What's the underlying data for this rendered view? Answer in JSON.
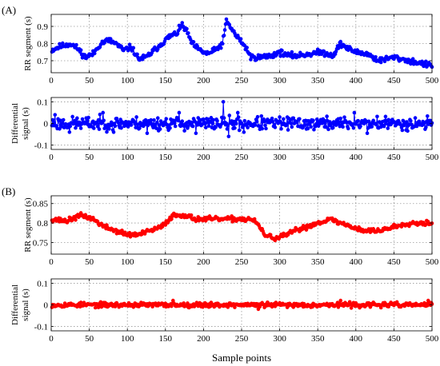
{
  "figure": {
    "xlabel_bottom": "Sample points",
    "colors": {
      "A": "#0000ff",
      "B": "#ff0000",
      "grid": "#9a9a9a"
    }
  },
  "chart_data": [
    {
      "id": "A1",
      "panel_label": "(A)",
      "type": "line",
      "ylabel_lines": [
        "RR segment (s)"
      ],
      "xlim": [
        0,
        500
      ],
      "ylim": [
        0.63,
        0.97
      ],
      "xticks": [
        0,
        50,
        100,
        150,
        200,
        250,
        300,
        350,
        400,
        450,
        500
      ],
      "yticks": [
        0.7,
        0.8,
        0.9
      ],
      "ytick_labels": [
        "0.7",
        "0.8",
        "0.9"
      ],
      "grid": true,
      "series": [
        {
          "color": "#0000ff",
          "marker": "circle",
          "knots": [
            [
              0,
              0.76
            ],
            [
              10,
              0.78
            ],
            [
              25,
              0.8
            ],
            [
              35,
              0.77
            ],
            [
              45,
              0.72
            ],
            [
              55,
              0.74
            ],
            [
              65,
              0.8
            ],
            [
              75,
              0.82
            ],
            [
              85,
              0.8
            ],
            [
              95,
              0.76
            ],
            [
              105,
              0.78
            ],
            [
              115,
              0.71
            ],
            [
              125,
              0.72
            ],
            [
              135,
              0.76
            ],
            [
              145,
              0.8
            ],
            [
              155,
              0.84
            ],
            [
              165,
              0.86
            ],
            [
              172,
              0.91
            ],
            [
              178,
              0.87
            ],
            [
              185,
              0.8
            ],
            [
              195,
              0.76
            ],
            [
              205,
              0.74
            ],
            [
              215,
              0.76
            ],
            [
              225,
              0.8
            ],
            [
              230,
              0.93
            ],
            [
              235,
              0.9
            ],
            [
              242,
              0.85
            ],
            [
              250,
              0.81
            ],
            [
              258,
              0.76
            ],
            [
              262,
              0.72
            ],
            [
              275,
              0.72
            ],
            [
              290,
              0.73
            ],
            [
              300,
              0.75
            ],
            [
              310,
              0.73
            ],
            [
              325,
              0.73
            ],
            [
              340,
              0.74
            ],
            [
              355,
              0.75
            ],
            [
              370,
              0.73
            ],
            [
              380,
              0.8
            ],
            [
              390,
              0.77
            ],
            [
              400,
              0.75
            ],
            [
              415,
              0.74
            ],
            [
              430,
              0.7
            ],
            [
              450,
              0.72
            ],
            [
              470,
              0.7
            ],
            [
              490,
              0.68
            ],
            [
              500,
              0.67
            ]
          ],
          "noise": 0.025,
          "seed": 11
        }
      ]
    },
    {
      "id": "A2",
      "type": "line",
      "ylabel_lines": [
        "Differential",
        "signal (s)"
      ],
      "xlim": [
        0,
        500
      ],
      "ylim": [
        -0.12,
        0.12
      ],
      "xticks": [
        0,
        50,
        100,
        150,
        200,
        250,
        300,
        350,
        400,
        450,
        500
      ],
      "yticks": [
        -0.1,
        0,
        0.1
      ],
      "ytick_labels": [
        "-0.1",
        "0",
        "0.1"
      ],
      "grid": true,
      "series": [
        {
          "color": "#0000ff",
          "marker": "circle",
          "knots": [
            [
              0,
              0
            ],
            [
              500,
              0
            ]
          ],
          "noise": 0.045,
          "seed": 23,
          "spikes": [
            [
              5,
              0.04
            ],
            [
              24,
              -0.04
            ],
            [
              68,
              0.05
            ],
            [
              82,
              -0.04
            ],
            [
              126,
              -0.045
            ],
            [
              168,
              0.05
            ],
            [
              190,
              -0.045
            ],
            [
              226,
              0.1
            ],
            [
              233,
              -0.06
            ],
            [
              245,
              0.05
            ],
            [
              253,
              -0.04
            ],
            [
              398,
              0.05
            ],
            [
              415,
              -0.045
            ]
          ]
        }
      ]
    },
    {
      "id": "B1",
      "panel_label": "(B)",
      "type": "line",
      "ylabel_lines": [
        "RR segment (s)"
      ],
      "xlim": [
        0,
        500
      ],
      "ylim": [
        0.72,
        0.87
      ],
      "xticks": [
        0,
        50,
        100,
        150,
        200,
        250,
        300,
        350,
        400,
        450,
        500
      ],
      "yticks": [
        0.75,
        0.8,
        0.85
      ],
      "ytick_labels": [
        "0.75",
        "0.8",
        "0.85"
      ],
      "grid": true,
      "series": [
        {
          "color": "#ff0000",
          "marker": "circle",
          "knots": [
            [
              0,
              0.81
            ],
            [
              20,
              0.805
            ],
            [
              40,
              0.82
            ],
            [
              55,
              0.81
            ],
            [
              70,
              0.79
            ],
            [
              85,
              0.78
            ],
            [
              100,
              0.77
            ],
            [
              115,
              0.77
            ],
            [
              130,
              0.78
            ],
            [
              145,
              0.79
            ],
            [
              160,
              0.82
            ],
            [
              175,
              0.82
            ],
            [
              190,
              0.81
            ],
            [
              220,
              0.81
            ],
            [
              250,
              0.81
            ],
            [
              262,
              0.81
            ],
            [
              270,
              0.8
            ],
            [
              280,
              0.77
            ],
            [
              295,
              0.76
            ],
            [
              310,
              0.77
            ],
            [
              320,
              0.78
            ],
            [
              335,
              0.79
            ],
            [
              350,
              0.8
            ],
            [
              365,
              0.81
            ],
            [
              380,
              0.8
            ],
            [
              395,
              0.79
            ],
            [
              410,
              0.78
            ],
            [
              430,
              0.78
            ],
            [
              450,
              0.79
            ],
            [
              470,
              0.8
            ],
            [
              485,
              0.8
            ],
            [
              500,
              0.8
            ]
          ],
          "noise": 0.009,
          "seed": 37
        }
      ]
    },
    {
      "id": "B2",
      "type": "line",
      "ylabel_lines": [
        "Differential",
        "signal (s)"
      ],
      "xlim": [
        0,
        500
      ],
      "ylim": [
        -0.12,
        0.12
      ],
      "xticks": [
        0,
        50,
        100,
        150,
        200,
        250,
        300,
        350,
        400,
        450,
        500
      ],
      "yticks": [
        -0.1,
        0,
        0.1
      ],
      "ytick_labels": [
        "-0.1",
        "0",
        "0.1"
      ],
      "grid": true,
      "series": [
        {
          "color": "#ff0000",
          "marker": "circle",
          "knots": [
            [
              0,
              0
            ],
            [
              500,
              0
            ]
          ],
          "noise": 0.016,
          "seed": 53,
          "spikes": [
            [
              160,
              0.02
            ],
            [
              272,
              -0.02
            ],
            [
              380,
              0.02
            ],
            [
              495,
              0.02
            ]
          ]
        }
      ]
    }
  ]
}
